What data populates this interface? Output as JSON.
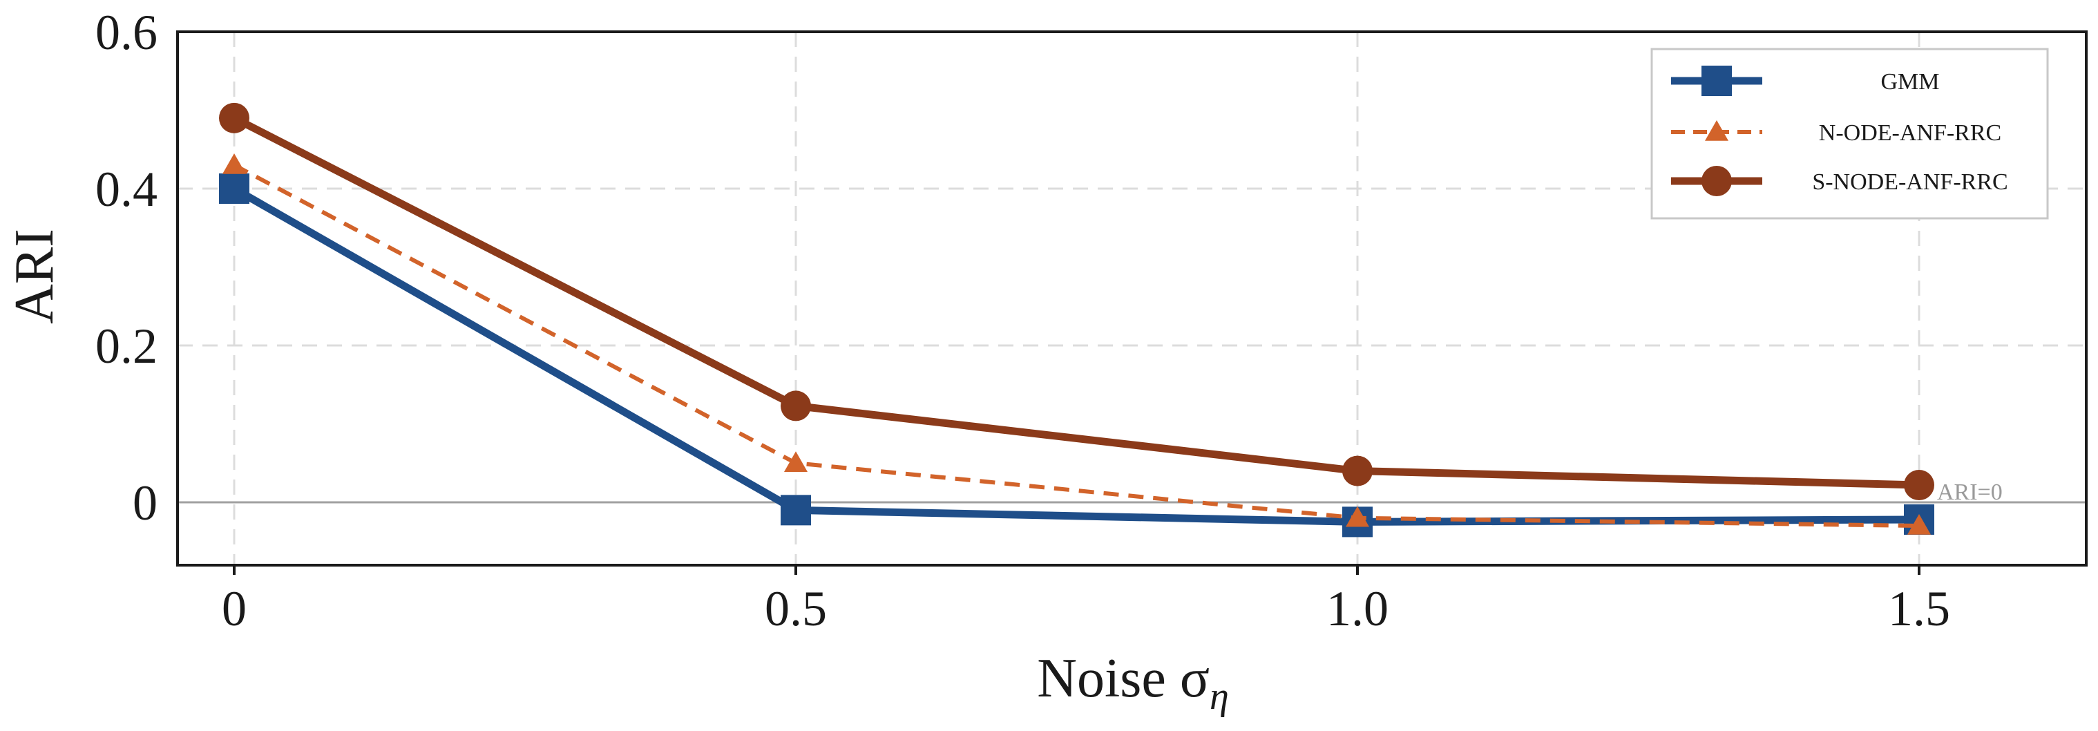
{
  "chart_data": {
    "type": "line",
    "xlabel": "Noise σ",
    "xlabel_subscript": "η",
    "ylabel": "ARI",
    "x": [
      0,
      0.5,
      1.0,
      1.5
    ],
    "x_tick_labels": [
      "0",
      "0.5",
      "1.0",
      "1.5"
    ],
    "y_ticks": [
      0,
      0.2,
      0.4,
      0.6
    ],
    "y_tick_labels": [
      "0",
      "0.2",
      "0.4",
      "0.6"
    ],
    "xlim": [
      -0.05,
      1.65
    ],
    "ylim": [
      -0.08,
      0.6
    ],
    "grid": true,
    "legend_position": "top-right",
    "reference_line": {
      "y": 0,
      "label": "ARI=0",
      "color": "#a0a0a0"
    },
    "series": [
      {
        "name": "GMM",
        "values": [
          0.4,
          -0.01,
          -0.025,
          -0.022
        ],
        "color": "#1f4e89",
        "marker": "square",
        "dash": "solid"
      },
      {
        "name": "N-ODE-ANF-RRC",
        "values": [
          0.43,
          0.05,
          -0.02,
          -0.03
        ],
        "color": "#d2632a",
        "marker": "triangle",
        "dash": "dashed"
      },
      {
        "name": "S-NODE-ANF-RRC",
        "values": [
          0.49,
          0.123,
          0.04,
          0.022
        ],
        "color": "#8b3a1a",
        "marker": "circle",
        "dash": "solid"
      }
    ]
  }
}
